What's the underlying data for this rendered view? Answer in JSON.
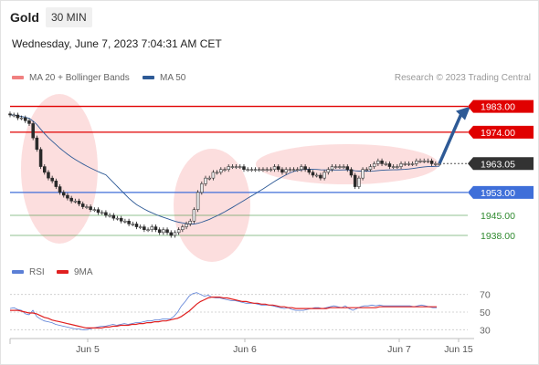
{
  "header": {
    "symbol": "Gold",
    "interval": "30 MIN",
    "timestamp": "Wednesday, June 7, 2023 7:04:31 AM CET"
  },
  "legend": {
    "price_items": [
      {
        "label": "MA 20 + Bollinger Bands",
        "color": "#f08080"
      },
      {
        "label": "MA 50",
        "color": "#2e5a96"
      }
    ],
    "rsi_items": [
      {
        "label": "RSI",
        "color": "#5b7fd6"
      },
      {
        "label": "9MA",
        "color": "#e02020"
      }
    ],
    "credit": "Research © 2023 Trading Central"
  },
  "colors": {
    "resistance": "#e00000",
    "support": "#3f6fd9",
    "target": "#2f8a2f",
    "current": "#333333",
    "candle_up": "#e8e8e8",
    "candle_down": "#2a2a2a",
    "bollinger": "#fbd3d3",
    "ma50": "#2e5a96",
    "arrow": "#2e5a96",
    "rsi": "#5b7fd6",
    "rsi_ma": "#e02020"
  },
  "chart_data": [
    {
      "type": "candlestick",
      "title": "Gold",
      "interval": "30 MIN",
      "ylim": [
        1931,
        1987
      ],
      "levels": [
        {
          "value": 1983.0,
          "label": "1983.00",
          "kind": "resistance"
        },
        {
          "value": 1974.0,
          "label": "1974.00",
          "kind": "resistance"
        },
        {
          "value": 1963.05,
          "label": "1963.05",
          "kind": "current"
        },
        {
          "value": 1953.0,
          "label": "1953.00",
          "kind": "support"
        },
        {
          "value": 1945.0,
          "label": "1945.00",
          "kind": "target"
        },
        {
          "value": 1938.0,
          "label": "1938.00",
          "kind": "target"
        }
      ],
      "arrow": {
        "from_value": 1963.05,
        "to_value": 1983.0,
        "direction": "up"
      },
      "x_ticks": [
        "Jun 5",
        "Jun 6",
        "Jun 7",
        "Jun 15"
      ],
      "close": [
        1980,
        1980,
        1979,
        1979,
        1978,
        1977,
        1972,
        1968,
        1962,
        1960,
        1958,
        1957,
        1955,
        1953,
        1952,
        1951,
        1950,
        1950,
        1949,
        1948,
        1948,
        1947,
        1947,
        1946,
        1946,
        1945,
        1945,
        1944,
        1944,
        1943,
        1943,
        1942,
        1942,
        1941,
        1941,
        1940,
        1940,
        1941,
        1940,
        1939,
        1940,
        1939,
        1938,
        1939,
        1940,
        1941,
        1942,
        1943,
        1947,
        1953,
        1956,
        1958,
        1958,
        1960,
        1960,
        1961,
        1961,
        1962,
        1962,
        1962,
        1962,
        1961,
        1961,
        1961,
        1961,
        1961,
        1961,
        1961,
        1961,
        1962,
        1961,
        1960,
        1961,
        1961,
        1961,
        1961,
        1962,
        1961,
        1960,
        1959,
        1959,
        1958,
        1960,
        1961,
        1962,
        1962,
        1962,
        1962,
        1961,
        1959,
        1955,
        1958,
        1961,
        1961,
        1962,
        1963,
        1964,
        1963,
        1963,
        1962,
        1962,
        1962,
        1963,
        1963,
        1963,
        1963,
        1964,
        1964,
        1964,
        1964,
        1963,
        1963,
        1963
      ]
    },
    {
      "type": "line",
      "title": "RSI",
      "ylim": [
        20,
        80
      ],
      "y_ticks": [
        70,
        50,
        30
      ],
      "series": [
        {
          "name": "RSI",
          "values": [
            54,
            55,
            53,
            52,
            48,
            47,
            52,
            45,
            42,
            40,
            39,
            38,
            36,
            35,
            34,
            33,
            32,
            31,
            31,
            30,
            30,
            31,
            32,
            33,
            34,
            34,
            35,
            36,
            35,
            36,
            37,
            36,
            37,
            38,
            38,
            39,
            40,
            40,
            41,
            41,
            42,
            42,
            42,
            45,
            50,
            57,
            62,
            68,
            71,
            72,
            70,
            68,
            69,
            67,
            66,
            66,
            65,
            64,
            63,
            63,
            62,
            61,
            60,
            60,
            60,
            59,
            58,
            58,
            58,
            57,
            56,
            55,
            54,
            55,
            53,
            52,
            52,
            52,
            53,
            54,
            55,
            55,
            54,
            55,
            56,
            57,
            56,
            55,
            57,
            54,
            52,
            54,
            56,
            57,
            57,
            58,
            57,
            58,
            57,
            57,
            57,
            57,
            57,
            57,
            57,
            57,
            56,
            57,
            58,
            57,
            56,
            55,
            55
          ]
        },
        {
          "name": "9MA",
          "values": [
            52,
            52,
            52,
            51,
            50,
            49,
            49,
            48,
            46,
            44,
            43,
            41,
            40,
            39,
            38,
            37,
            36,
            35,
            34,
            33,
            32,
            32,
            32,
            32,
            32,
            33,
            33,
            34,
            34,
            35,
            35,
            35,
            36,
            36,
            37,
            37,
            38,
            38,
            39,
            39,
            40,
            40,
            41,
            42,
            43,
            45,
            48,
            51,
            55,
            59,
            62,
            64,
            66,
            67,
            67,
            67,
            66,
            66,
            65,
            64,
            63,
            62,
            62,
            61,
            60,
            60,
            59,
            59,
            58,
            58,
            57,
            56,
            56,
            55,
            55,
            54,
            54,
            54,
            54,
            54,
            54,
            54,
            54,
            54,
            55,
            55,
            55,
            55,
            55,
            55,
            55,
            55,
            55,
            55,
            55,
            55,
            55,
            56,
            56,
            56,
            56,
            56,
            56,
            56,
            56,
            56,
            56,
            56,
            56,
            56,
            56,
            56,
            56
          ]
        }
      ]
    }
  ]
}
